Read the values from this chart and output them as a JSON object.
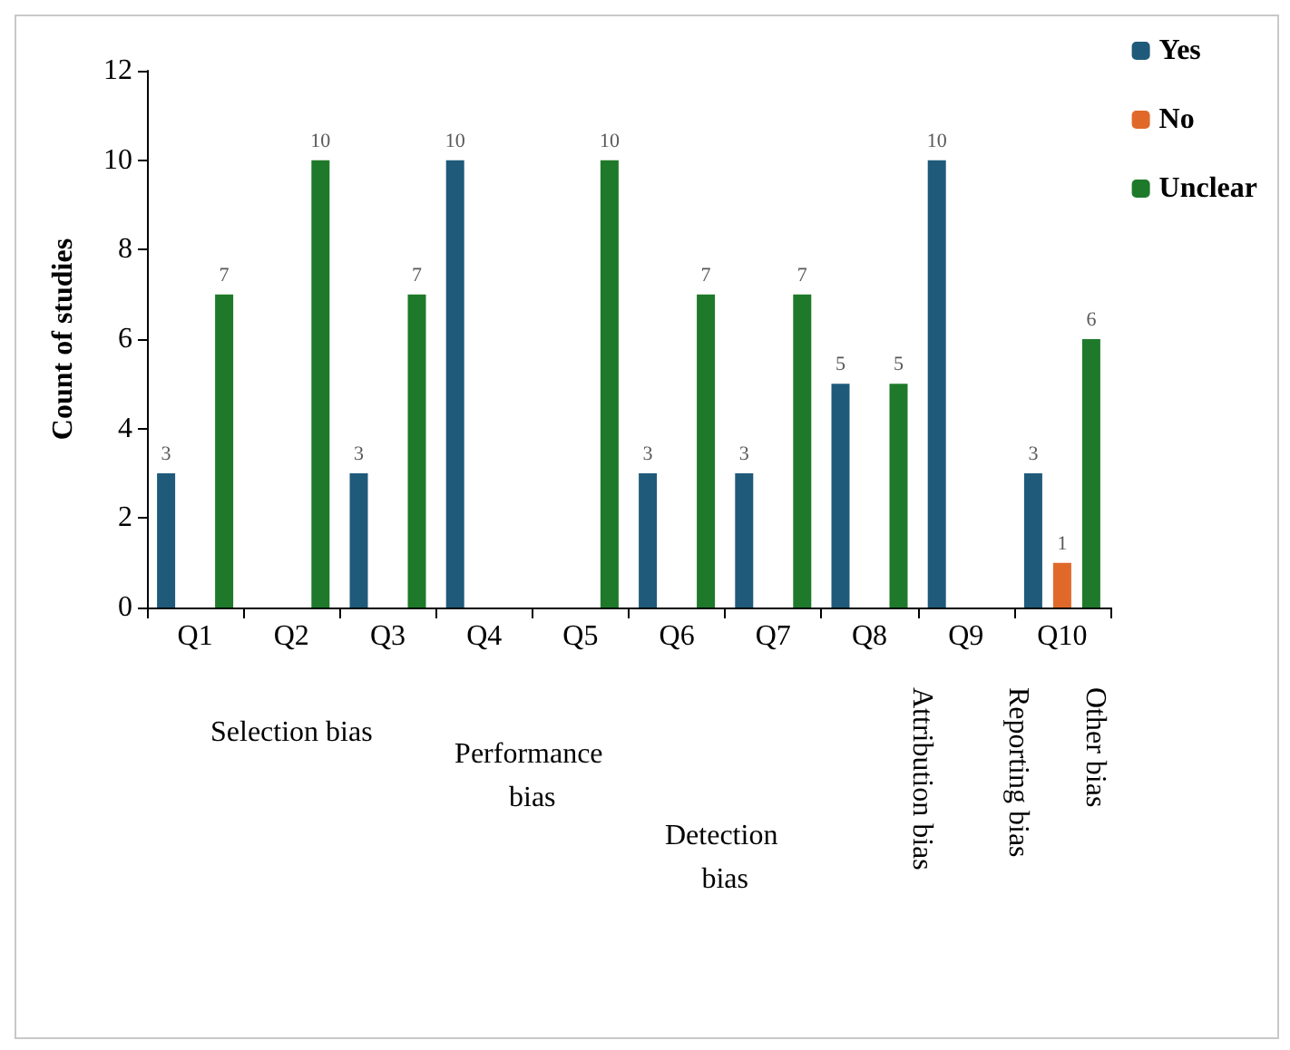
{
  "chart_data": {
    "type": "bar",
    "ylabel": "Count of studies",
    "categories": [
      "Q1",
      "Q2",
      "Q3",
      "Q4",
      "Q5",
      "Q6",
      "Q7",
      "Q8",
      "Q9",
      "Q10"
    ],
    "series": [
      {
        "name": "Yes",
        "color": "#1f5a7a",
        "values": [
          3,
          null,
          3,
          10,
          null,
          3,
          3,
          5,
          10,
          3
        ]
      },
      {
        "name": "No",
        "color": "#e0692a",
        "values": [
          null,
          null,
          null,
          null,
          null,
          null,
          null,
          null,
          null,
          1
        ]
      },
      {
        "name": "Unclear",
        "color": "#1e7a2a",
        "values": [
          7,
          10,
          7,
          null,
          10,
          7,
          7,
          5,
          null,
          6
        ]
      }
    ],
    "ylim": [
      0,
      12
    ],
    "yticks": [
      0,
      2,
      4,
      6,
      8,
      10,
      12
    ],
    "grid": false,
    "legend": "top right",
    "data_labels": true,
    "annotations": [
      "Selection bias",
      "Performance bias",
      "Detection bias",
      "Attribution bias",
      "Reporting bias",
      "Other bias"
    ]
  }
}
